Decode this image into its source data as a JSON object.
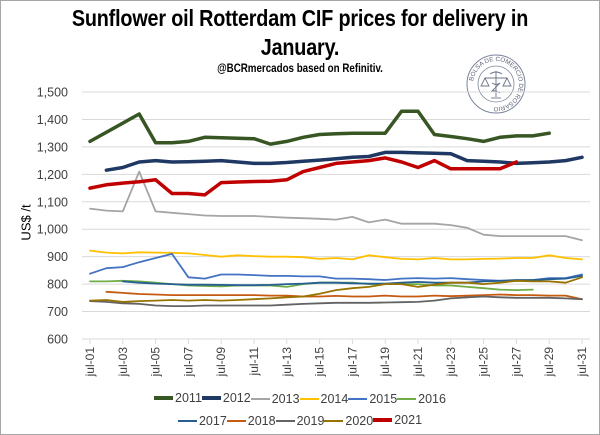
{
  "chart_data": {
    "type": "line",
    "title": "Sunflower oil Rotterdam CIF prices for delivery in January.",
    "title_lines": [
      "Sunflower oil Rotterdam CIF prices for delivery in",
      "January."
    ],
    "subtitle": "@BCRmercados based on Refinitiv.",
    "logo_text": "BOLSA DE COMERCIO DE ROSARIO",
    "xlabel": "",
    "ylabel": "US$ /t",
    "ylim": [
      600,
      1500
    ],
    "yticks": [
      600,
      700,
      800,
      900,
      1000,
      1100,
      1200,
      1300,
      1400,
      1500
    ],
    "ytick_labels": [
      "600",
      "700",
      "800",
      "900",
      "1,000",
      "1,100",
      "1,200",
      "1,300",
      "1,400",
      "1,500"
    ],
    "x": [
      "jul-01",
      "jul-02",
      "jul-03",
      "jul-04",
      "jul-05",
      "jul-06",
      "jul-07",
      "jul-08",
      "jul-09",
      "jul-10",
      "jul-11",
      "jul-12",
      "jul-13",
      "jul-14",
      "jul-15",
      "jul-16",
      "jul-17",
      "jul-18",
      "jul-19",
      "jul-20",
      "jul-21",
      "jul-22",
      "jul-23",
      "jul-24",
      "jul-25",
      "jul-26",
      "jul-27",
      "jul-28",
      "jul-29",
      "jul-30",
      "jul-31"
    ],
    "xtick_labels": [
      "jul-01",
      "jul-03",
      "jul-05",
      "jul-07",
      "jul-09",
      "jul-11",
      "jul-13",
      "jul-15",
      "jul-17",
      "jul-19",
      "jul-21",
      "jul-23",
      "jul-25",
      "jul-27",
      "jul-29",
      "jul-31"
    ],
    "grid": true,
    "legend_position": "bottom",
    "series": [
      {
        "name": "2011",
        "color": "#375623",
        "width": 3.5,
        "values": [
          1320,
          null,
          null,
          1420,
          1315,
          1315,
          1320,
          1335,
          1333,
          null,
          1330,
          1310,
          1320,
          1335,
          1345,
          1348,
          1350,
          1350,
          1350,
          1430,
          1430,
          1345,
          1338,
          1330,
          1320,
          1335,
          1340,
          1340,
          1350,
          null,
          null
        ]
      },
      {
        "name": "2012",
        "color": "#1f3864",
        "width": 3.5,
        "values": [
          null,
          1215,
          1225,
          1245,
          1250,
          1245,
          1246,
          1248,
          1250,
          1245,
          1240,
          1240,
          1243,
          1248,
          1252,
          1257,
          1262,
          1265,
          1280,
          1280,
          1278,
          1277,
          1275,
          1250,
          1248,
          1245,
          1240,
          1242,
          1245,
          1250,
          1262
        ]
      },
      {
        "name": "2013",
        "color": "#a5a5a5",
        "width": 1.8,
        "values": [
          1075,
          1068,
          1065,
          1210,
          1065,
          1060,
          1055,
          1050,
          1048,
          1048,
          1048,
          1045,
          1042,
          1040,
          1038,
          1035,
          1045,
          1025,
          1035,
          1020,
          1020,
          1020,
          1015,
          1005,
          980,
          975,
          975,
          975,
          975,
          975,
          960
        ]
      },
      {
        "name": "2014",
        "color": "#ffc000",
        "width": 1.8,
        "values": [
          922,
          915,
          912,
          916,
          915,
          914,
          912,
          906,
          900,
          905,
          902,
          900,
          900,
          898,
          892,
          895,
          890,
          905,
          898,
          892,
          890,
          895,
          890,
          890,
          892,
          893,
          895,
          895,
          905,
          895,
          890
        ]
      },
      {
        "name": "2015",
        "color": "#4472c4",
        "width": 1.8,
        "values": [
          838,
          858,
          862,
          880,
          895,
          910,
          825,
          820,
          835,
          835,
          833,
          830,
          830,
          828,
          828,
          820,
          820,
          818,
          815,
          820,
          822,
          820,
          822,
          818,
          815,
          812,
          812,
          815,
          822,
          822,
          835
        ]
      },
      {
        "name": "2016",
        "color": "#70ad47",
        "width": 1.8,
        "values": [
          810,
          810,
          812,
          810,
          805,
          800,
          795,
          793,
          792,
          795,
          795,
          795,
          790,
          800,
          805,
          805,
          805,
          800,
          800,
          800,
          800,
          795,
          795,
          790,
          785,
          780,
          778,
          780,
          null,
          null,
          null
        ]
      },
      {
        "name": "2017",
        "color": "#255e91",
        "width": 1.8,
        "values": [
          null,
          null,
          810,
          805,
          802,
          800,
          798,
          798,
          797,
          796,
          796,
          797,
          800,
          802,
          805,
          805,
          803,
          802,
          802,
          805,
          808,
          805,
          805,
          805,
          810,
          812,
          815,
          815,
          818,
          820,
          830
        ]
      },
      {
        "name": "2018",
        "color": "#c55a11",
        "width": 1.8,
        "values": [
          null,
          772,
          768,
          764,
          762,
          760,
          760,
          760,
          760,
          760,
          760,
          758,
          758,
          755,
          755,
          757,
          755,
          755,
          758,
          755,
          755,
          758,
          756,
          758,
          760,
          762,
          760,
          760,
          758,
          758,
          745
        ]
      },
      {
        "name": "2019",
        "color": "#636363",
        "width": 1.8,
        "values": [
          738,
          735,
          730,
          728,
          722,
          720,
          720,
          722,
          722,
          722,
          722,
          722,
          725,
          728,
          730,
          732,
          732,
          732,
          733,
          734,
          735,
          740,
          748,
          752,
          755,
          752,
          750,
          750,
          750,
          748,
          745
        ]
      },
      {
        "name": "2020",
        "color": "#997300",
        "width": 1.8,
        "values": [
          740,
          742,
          735,
          738,
          740,
          742,
          740,
          742,
          740,
          742,
          745,
          748,
          752,
          755,
          765,
          778,
          785,
          790,
          800,
          800,
          790,
          798,
          805,
          805,
          800,
          805,
          812,
          810,
          810,
          805,
          825
        ]
      },
      {
        "name": "2021",
        "color": "#c00000",
        "width": 3.5,
        "values": [
          1150,
          1162,
          1168,
          1173,
          1180,
          1130,
          1130,
          1125,
          1170,
          1172,
          1174,
          1175,
          1180,
          1210,
          1225,
          1240,
          1245,
          1250,
          1260,
          1245,
          1225,
          1250,
          1220,
          1220,
          1220,
          1220,
          1245,
          null,
          null,
          null,
          null
        ]
      }
    ]
  }
}
